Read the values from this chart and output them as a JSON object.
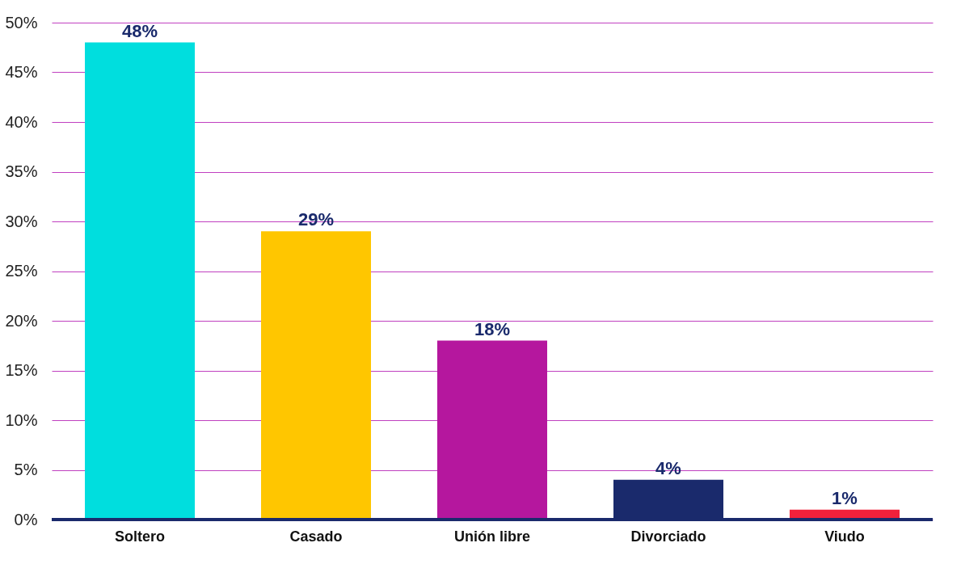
{
  "chart_data": {
    "type": "bar",
    "categories": [
      "Soltero",
      "Casado",
      "Unión libre",
      "Divorciado",
      "Viudo"
    ],
    "values": [
      48,
      29,
      18,
      4,
      1
    ],
    "colors": [
      "#00dede",
      "#ffc600",
      "#b5179e",
      "#1a2a6c",
      "#f2213b"
    ],
    "value_labels": [
      "48%",
      "29%",
      "18%",
      "4%",
      "1%"
    ],
    "ylim": [
      0,
      50
    ],
    "yticks": [
      {
        "value": 0,
        "label": "0%"
      },
      {
        "value": 5,
        "label": "5%"
      },
      {
        "value": 10,
        "label": "10%"
      },
      {
        "value": 15,
        "label": "15%"
      },
      {
        "value": 20,
        "label": "20%"
      },
      {
        "value": 25,
        "label": "25%"
      },
      {
        "value": 30,
        "label": "30%"
      },
      {
        "value": 35,
        "label": "35%"
      },
      {
        "value": 40,
        "label": "40%"
      },
      {
        "value": 45,
        "label": "45%"
      },
      {
        "value": 50,
        "label": "50%"
      }
    ],
    "grid": "y"
  }
}
